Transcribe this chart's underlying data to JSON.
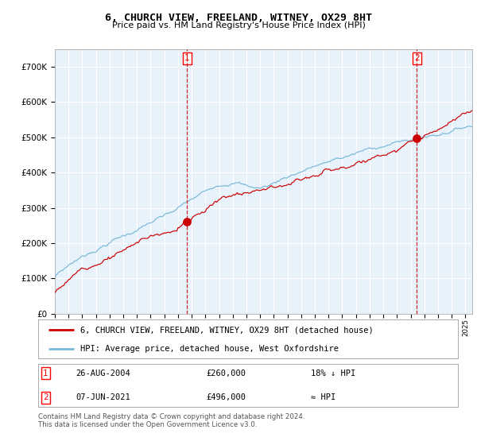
{
  "title": "6, CHURCH VIEW, FREELAND, WITNEY, OX29 8HT",
  "subtitle": "Price paid vs. HM Land Registry's House Price Index (HPI)",
  "hpi_label": "HPI: Average price, detached house, West Oxfordshire",
  "property_label": "6, CHURCH VIEW, FREELAND, WITNEY, OX29 8HT (detached house)",
  "transaction1": {
    "date": "26-AUG-2004",
    "price": 260000,
    "label": "18% ↓ HPI"
  },
  "transaction2": {
    "date": "07-JUN-2021",
    "price": 496000,
    "label": "≈ HPI"
  },
  "hpi_color": "#7ab8d9",
  "property_color": "#cc0000",
  "vline_color": "#cc0000",
  "background_color": "#e8f2fa",
  "grid_color": "#ffffff",
  "ylim": [
    0,
    750000
  ],
  "yticks": [
    0,
    100000,
    200000,
    300000,
    400000,
    500000,
    600000,
    700000
  ],
  "footer": "Contains HM Land Registry data © Crown copyright and database right 2024.\nThis data is licensed under the Open Government Licence v3.0.",
  "year_start": 1995,
  "year_end": 2025,
  "t1_year": 2004.65,
  "t2_year": 2021.44
}
